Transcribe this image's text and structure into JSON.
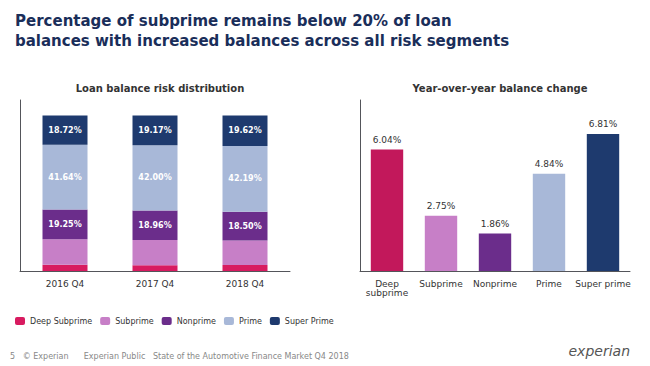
{
  "title": "Percentage of subprime remains below 20% of loan\nbalances with increased balances across all risk segments",
  "title_color": "#1a2e5a",
  "annotations": [
    "5   © Experian      Experian Public   State of the Automotive Finance Market Q4 2018",
    "experian"
  ],
  "chart_data": [
    {
      "type": "bar",
      "title": "Loan balance risk distribution",
      "stacked": true,
      "categories": [
        "2016 Q4",
        "2017 Q4",
        "2018 Q4"
      ],
      "series": [
        {
          "name": "Deep Subprime",
          "color": "#d81b60",
          "values": [
            3.98,
            3.77,
            3.83
          ],
          "data_labels": false
        },
        {
          "name": "Subprime",
          "color": "#c77fc7",
          "values": [
            16.41,
            16.11,
            15.86
          ],
          "data_labels": false
        },
        {
          "name": "Nonprime",
          "color": "#6b2d8b",
          "values": [
            19.25,
            18.96,
            18.5
          ],
          "data_labels": true,
          "value_labels": [
            "19.25%",
            "18.96%",
            "18.50%"
          ]
        },
        {
          "name": "Prime",
          "color": "#a8b8d8",
          "values": [
            41.64,
            42.0,
            42.19
          ],
          "data_labels": true,
          "value_labels": [
            "41.64%",
            "42.00%",
            "42.19%"
          ]
        },
        {
          "name": "Super Prime",
          "color": "#1e3a6e",
          "values": [
            18.72,
            19.17,
            19.62
          ],
          "data_labels": true,
          "value_labels": [
            "18.72%",
            "19.17%",
            "19.62%"
          ]
        }
      ],
      "ylim": [
        0,
        110
      ],
      "yticks": [],
      "tick_labels": "x",
      "grid": false,
      "legend": "lower left"
    },
    {
      "type": "bar",
      "title": "Year-over-year balance change",
      "categories": [
        "Deep\nsubprime",
        "Subprime",
        "Nonprime",
        "Prime",
        "Super prime"
      ],
      "values": [
        6.04,
        2.75,
        1.86,
        4.84,
        6.81
      ],
      "value_labels": [
        "6.04%",
        "2.75%",
        "1.86%",
        "4.84%",
        "6.81%"
      ],
      "colors": [
        "#c2185b",
        "#c77fc7",
        "#6b2d8b",
        "#a8b8d8",
        "#1e3a6e"
      ],
      "data_labels": true,
      "ylim": [
        0,
        8.5
      ],
      "yticks": [],
      "tick_labels": "x",
      "grid": false
    }
  ]
}
